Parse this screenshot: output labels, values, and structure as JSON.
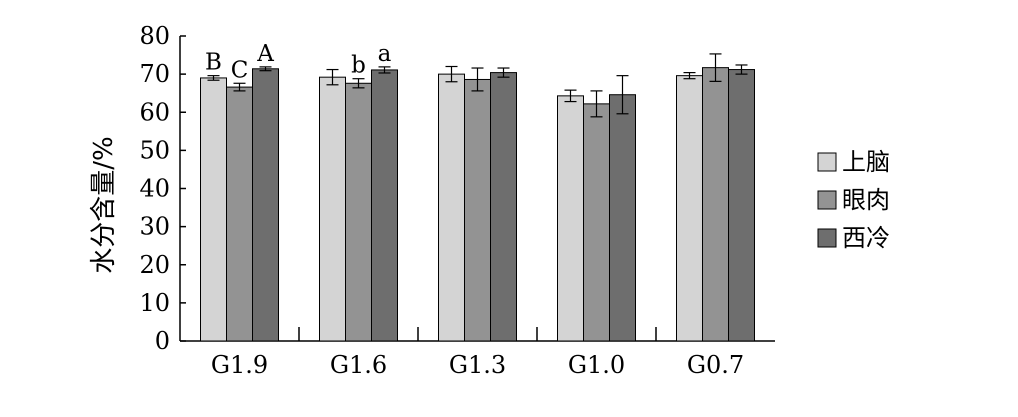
{
  "chart_data": {
    "type": "bar",
    "categories": [
      "G1.9",
      "G1.6",
      "G1.3",
      "G1.0",
      "G0.7"
    ],
    "series": [
      {
        "name": "上脑",
        "color": "#d4d4d4",
        "values": [
          69.0,
          69.2,
          70.0,
          64.3,
          69.6
        ],
        "errors": [
          0.6,
          2.0,
          2.0,
          1.5,
          0.8
        ],
        "sig_labels": [
          "B",
          "",
          "",
          "",
          ""
        ]
      },
      {
        "name": "眼肉",
        "color": "#939393",
        "values": [
          66.6,
          67.6,
          68.6,
          62.2,
          71.7
        ],
        "errors": [
          1.0,
          1.2,
          3.0,
          3.4,
          3.6
        ],
        "sig_labels": [
          "C",
          "b",
          "",
          "",
          ""
        ]
      },
      {
        "name": "西冷",
        "color": "#6e6e6e",
        "values": [
          71.4,
          71.1,
          70.4,
          64.6,
          71.2
        ],
        "errors": [
          0.5,
          0.8,
          1.2,
          5.0,
          1.2
        ],
        "sig_labels": [
          "A",
          "a",
          "",
          "",
          ""
        ]
      }
    ],
    "ylabel": "水分含量/%",
    "xlabel": "",
    "title": "",
    "ylim": [
      0,
      80
    ],
    "yticks": [
      0,
      10,
      20,
      30,
      40,
      50,
      60,
      70,
      80
    ],
    "grid": false,
    "legend_position": "right"
  }
}
